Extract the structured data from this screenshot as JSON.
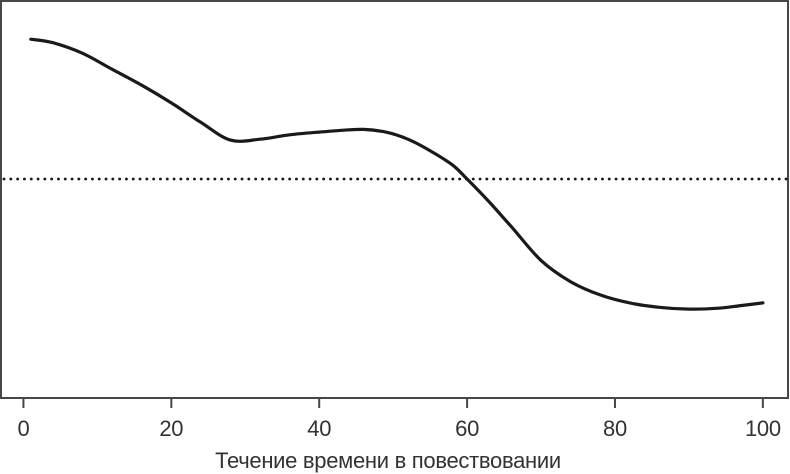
{
  "figure": {
    "background": "#ffffff",
    "frame_color": "#474747",
    "curve_color": "#1a1a1a",
    "baseline_color": "#1a1a1a",
    "tick_color": "#474747",
    "text_color": "#323232"
  },
  "chart_data": {
    "type": "line",
    "title": "",
    "xlabel": "Течение времени в повествовании",
    "ylabel": "",
    "x_ticks": [
      0,
      20,
      40,
      60,
      80,
      100
    ],
    "x_tick_labels": [
      "0",
      "20",
      "40",
      "60",
      "80",
      "100"
    ],
    "xlim": [
      -2.9,
      103.4
    ],
    "ylim": [
      -1.24,
      1.0
    ],
    "grid": false,
    "legend": "none",
    "y_axis_shown": false,
    "baseline": {
      "y": 0,
      "style": "dotted",
      "name": "neutral-baseline"
    },
    "series": [
      {
        "name": "story-arc",
        "style": "solid-smooth",
        "x": [
          1,
          4,
          8,
          12,
          16,
          20,
          24,
          28,
          32,
          36,
          40,
          43,
          46,
          49,
          52,
          55,
          58,
          60,
          63,
          66,
          70,
          74,
          78,
          82,
          86,
          90,
          94,
          97,
          100
        ],
        "y": [
          0.79,
          0.77,
          0.71,
          0.62,
          0.53,
          0.43,
          0.32,
          0.22,
          0.225,
          0.25,
          0.265,
          0.275,
          0.28,
          0.265,
          0.225,
          0.16,
          0.08,
          0.0,
          -0.13,
          -0.27,
          -0.46,
          -0.58,
          -0.655,
          -0.7,
          -0.725,
          -0.735,
          -0.73,
          -0.715,
          -0.7
        ]
      }
    ]
  }
}
